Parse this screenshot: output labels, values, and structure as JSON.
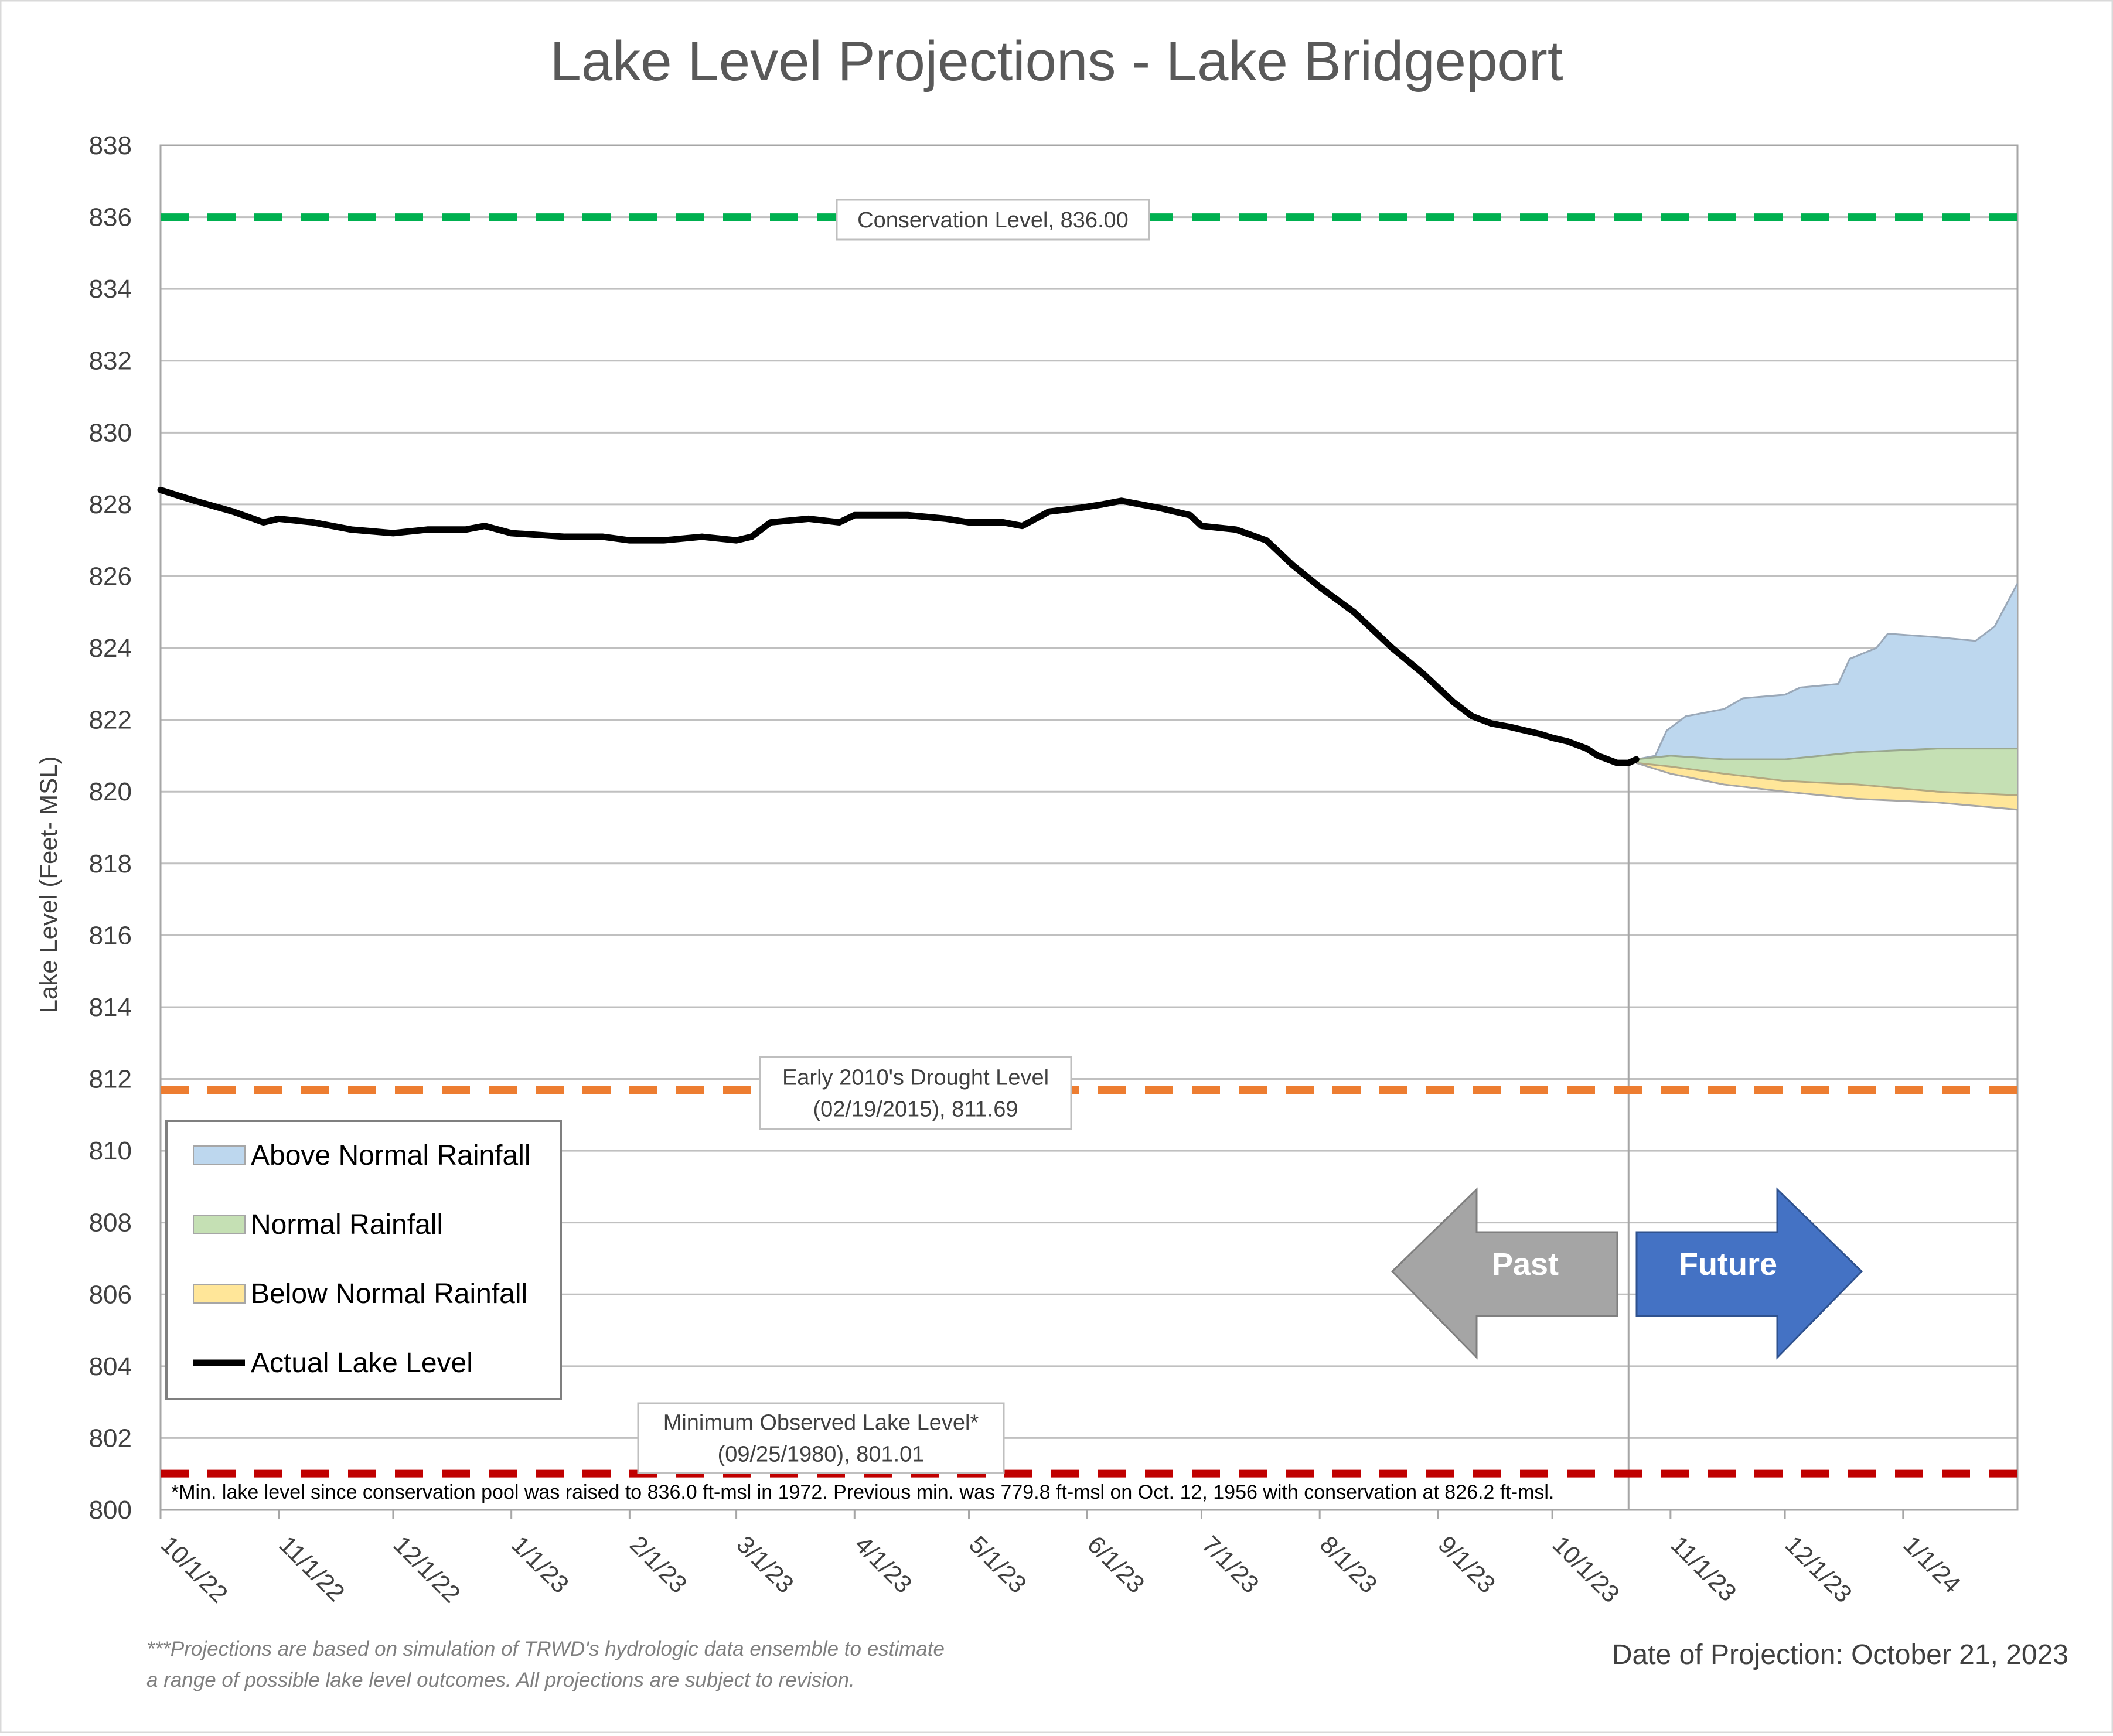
{
  "chart_data": {
    "type": "area",
    "title": "Lake Level Projections - Lake Bridgeport",
    "xlabel": "",
    "ylabel": "Lake Level (Feet- MSL)",
    "ylim": [
      800,
      838
    ],
    "xlim": [
      "2022-10-01",
      "2024-01-31"
    ],
    "y_ticks": [
      800,
      802,
      804,
      806,
      808,
      810,
      812,
      814,
      816,
      818,
      820,
      822,
      824,
      826,
      828,
      830,
      832,
      834,
      836,
      838
    ],
    "x_ticks": [
      {
        "date": "2022-10-01",
        "label": "10/1/22"
      },
      {
        "date": "2022-11-01",
        "label": "11/1/22"
      },
      {
        "date": "2022-12-01",
        "label": "12/1/22"
      },
      {
        "date": "2023-01-01",
        "label": "1/1/23"
      },
      {
        "date": "2023-02-01",
        "label": "2/1/23"
      },
      {
        "date": "2023-03-01",
        "label": "3/1/23"
      },
      {
        "date": "2023-04-01",
        "label": "4/1/23"
      },
      {
        "date": "2023-05-01",
        "label": "5/1/23"
      },
      {
        "date": "2023-06-01",
        "label": "6/1/23"
      },
      {
        "date": "2023-07-01",
        "label": "7/1/23"
      },
      {
        "date": "2023-08-01",
        "label": "8/1/23"
      },
      {
        "date": "2023-09-01",
        "label": "9/1/23"
      },
      {
        "date": "2023-10-01",
        "label": "10/1/23"
      },
      {
        "date": "2023-11-01",
        "label": "11/1/23"
      },
      {
        "date": "2023-12-01",
        "label": "12/1/23"
      },
      {
        "date": "2024-01-01",
        "label": "1/1/24"
      }
    ],
    "grid": "horizontal",
    "projection_date": "2023-10-21",
    "reference_lines": [
      {
        "name": "Conservation Level",
        "value": 836.0,
        "color": "#00b050",
        "label_lines": [
          "Conservation Level, 836.00"
        ]
      },
      {
        "name": "Early 2010's Drought Level",
        "value": 811.69,
        "color": "#ed7d31",
        "label_lines": [
          "Early 2010's Drought Level",
          "(02/19/2015), 811.69"
        ]
      },
      {
        "name": "Minimum Observed Lake Level",
        "value": 801.01,
        "color": "#c00000",
        "label_lines": [
          "Minimum Observed Lake Level*",
          "(09/25/1980), 801.01"
        ]
      }
    ],
    "series": [
      {
        "name": "Actual Lake Level",
        "kind": "line",
        "color": "#000000",
        "points": [
          [
            "2022-10-01",
            828.4
          ],
          [
            "2022-10-10",
            828.1
          ],
          [
            "2022-10-20",
            827.8
          ],
          [
            "2022-10-28",
            827.5
          ],
          [
            "2022-11-01",
            827.6
          ],
          [
            "2022-11-10",
            827.5
          ],
          [
            "2022-11-20",
            827.3
          ],
          [
            "2022-12-01",
            827.2
          ],
          [
            "2022-12-10",
            827.3
          ],
          [
            "2022-12-20",
            827.3
          ],
          [
            "2022-12-25",
            827.4
          ],
          [
            "2023-01-01",
            827.2
          ],
          [
            "2023-01-15",
            827.1
          ],
          [
            "2023-01-25",
            827.1
          ],
          [
            "2023-02-01",
            827.0
          ],
          [
            "2023-02-10",
            827.0
          ],
          [
            "2023-02-20",
            827.1
          ],
          [
            "2023-03-01",
            827.0
          ],
          [
            "2023-03-05",
            827.1
          ],
          [
            "2023-03-10",
            827.5
          ],
          [
            "2023-03-20",
            827.6
          ],
          [
            "2023-03-28",
            827.5
          ],
          [
            "2023-04-01",
            827.7
          ],
          [
            "2023-04-15",
            827.7
          ],
          [
            "2023-04-25",
            827.6
          ],
          [
            "2023-05-01",
            827.5
          ],
          [
            "2023-05-10",
            827.5
          ],
          [
            "2023-05-15",
            827.4
          ],
          [
            "2023-05-22",
            827.8
          ],
          [
            "2023-05-30",
            827.9
          ],
          [
            "2023-06-05",
            828.0
          ],
          [
            "2023-06-10",
            828.1
          ],
          [
            "2023-06-20",
            827.9
          ],
          [
            "2023-06-28",
            827.7
          ],
          [
            "2023-07-01",
            827.4
          ],
          [
            "2023-07-10",
            827.3
          ],
          [
            "2023-07-18",
            827.0
          ],
          [
            "2023-07-25",
            826.3
          ],
          [
            "2023-08-01",
            825.7
          ],
          [
            "2023-08-10",
            825.0
          ],
          [
            "2023-08-20",
            824.0
          ],
          [
            "2023-08-28",
            823.3
          ],
          [
            "2023-09-01",
            822.9
          ],
          [
            "2023-09-05",
            822.5
          ],
          [
            "2023-09-10",
            822.1
          ],
          [
            "2023-09-15",
            821.9
          ],
          [
            "2023-09-20",
            821.8
          ],
          [
            "2023-09-28",
            821.6
          ],
          [
            "2023-10-01",
            821.5
          ],
          [
            "2023-10-05",
            821.4
          ],
          [
            "2023-10-10",
            821.2
          ],
          [
            "2023-10-13",
            821.0
          ],
          [
            "2023-10-18",
            820.8
          ],
          [
            "2023-10-21",
            820.8
          ],
          [
            "2023-10-23",
            820.9
          ]
        ]
      },
      {
        "name": "Above Normal Rainfall",
        "kind": "band",
        "color": "#bdd7ee",
        "stroke": "#9aa8b8",
        "points": [
          [
            "2023-10-23",
            820.9
          ],
          [
            "2023-10-28",
            821.0
          ],
          [
            "2023-10-31",
            821.7
          ],
          [
            "2023-11-05",
            822.1
          ],
          [
            "2023-11-15",
            822.3
          ],
          [
            "2023-11-20",
            822.6
          ],
          [
            "2023-12-01",
            822.7
          ],
          [
            "2023-12-05",
            822.9
          ],
          [
            "2023-12-15",
            823.0
          ],
          [
            "2023-12-18",
            823.7
          ],
          [
            "2023-12-25",
            824.0
          ],
          [
            "2023-12-28",
            824.4
          ],
          [
            "2024-01-10",
            824.3
          ],
          [
            "2024-01-20",
            824.2
          ],
          [
            "2024-01-25",
            824.6
          ],
          [
            "2024-01-31",
            825.8
          ]
        ]
      },
      {
        "name": "Normal Rainfall",
        "kind": "band",
        "color": "#c5e0b4",
        "stroke": "#9aa88f",
        "points": [
          [
            "2023-10-23",
            820.9
          ],
          [
            "2023-11-01",
            821.0
          ],
          [
            "2023-11-15",
            820.9
          ],
          [
            "2023-12-01",
            820.9
          ],
          [
            "2023-12-20",
            821.1
          ],
          [
            "2024-01-10",
            821.2
          ],
          [
            "2024-01-31",
            821.2
          ]
        ]
      },
      {
        "name": "Below Normal Rainfall",
        "kind": "band",
        "color": "#ffe699",
        "stroke": "#b3a880",
        "points": [
          [
            "2023-10-23",
            820.8
          ],
          [
            "2023-11-01",
            820.7
          ],
          [
            "2023-11-15",
            820.5
          ],
          [
            "2023-12-01",
            820.3
          ],
          [
            "2023-12-20",
            820.2
          ],
          [
            "2024-01-10",
            820.0
          ],
          [
            "2024-01-31",
            819.9
          ]
        ]
      }
    ],
    "lower_boundary": [
      [
        "2023-10-23",
        820.8
      ],
      [
        "2023-11-01",
        820.5
      ],
      [
        "2023-11-15",
        820.2
      ],
      [
        "2023-12-01",
        820.0
      ],
      [
        "2023-12-20",
        819.8
      ],
      [
        "2024-01-10",
        819.7
      ],
      [
        "2024-01-31",
        819.5
      ]
    ],
    "legend": {
      "position": "bottom-left",
      "entries": [
        {
          "label": "Above Normal Rainfall",
          "color": "#bdd7ee",
          "kind": "patch"
        },
        {
          "label": "Normal Rainfall",
          "color": "#c5e0b4",
          "kind": "patch"
        },
        {
          "label": "Below Normal Rainfall",
          "color": "#ffe699",
          "kind": "patch"
        },
        {
          "label": "Actual Lake Level",
          "color": "#000000",
          "kind": "line"
        }
      ]
    },
    "arrows": {
      "past": {
        "label": "Past",
        "color": "#a5a5a5"
      },
      "future": {
        "label": "Future",
        "color": "#4472c4"
      }
    },
    "notes": {
      "min_note": "*Min. lake level since conservation pool was raised to 836.0 ft-msl in 1972.  Previous min. was 779.8 ft-msl on Oct. 12, 1956 with conservation at 826.2 ft-msl.",
      "footnote_lines": [
        "***Projections are based on simulation of TRWD's hydrologic data ensemble to estimate",
        "a range of possible lake level outcomes.  All projections are subject to revision."
      ],
      "projection_date_text": "Date of Projection: October 21, 2023"
    }
  }
}
